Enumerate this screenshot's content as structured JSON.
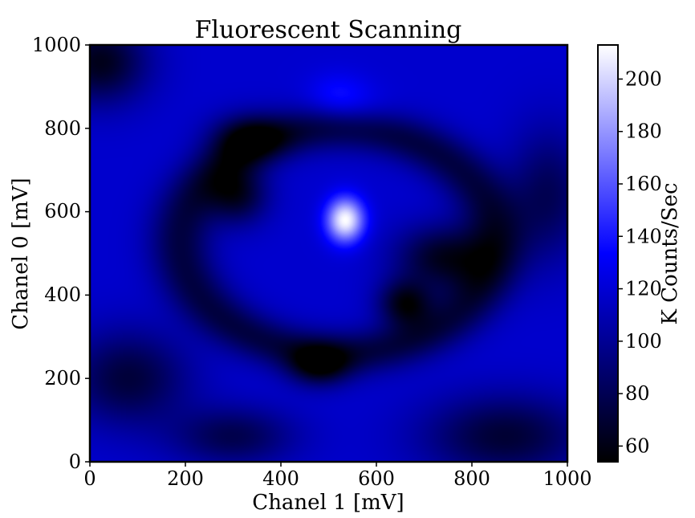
{
  "chart_data": {
    "type": "heatmap",
    "title": "Fluorescent Scanning",
    "xlabel": "Chanel 1 [mV]",
    "ylabel": "Chanel 0 [mV]",
    "xlim": [
      0,
      1000
    ],
    "ylim": [
      0,
      1000
    ],
    "x_ticks": [
      "0",
      "200",
      "400",
      "600",
      "800",
      "1000"
    ],
    "y_ticks": [
      "0",
      "200",
      "400",
      "600",
      "800",
      "1000"
    ],
    "colorbar": {
      "label": "K Counts/Sec",
      "range": [
        54,
        213
      ],
      "ticks": [
        "60",
        "80",
        "100",
        "120",
        "140",
        "160",
        "180",
        "200"
      ],
      "colors": [
        "#000000",
        "#0000ff",
        "#ffffff"
      ]
    },
    "background_level": 118,
    "features": [
      {
        "kind": "bright-spot",
        "x": 535,
        "y": 580,
        "sx": 28,
        "sy": 38,
        "value": 213
      },
      {
        "kind": "bright-spot",
        "x": 520,
        "y": 875,
        "sx": 45,
        "sy": 40,
        "value": 138
      },
      {
        "kind": "bright-spot",
        "x": 580,
        "y": 840,
        "sx": 50,
        "sy": 40,
        "value": 125
      },
      {
        "kind": "dark-ring",
        "cx": 520,
        "cy": 530,
        "rx": 330,
        "ry": 270,
        "width": 38,
        "value": 74
      },
      {
        "kind": "dark-spot",
        "x": 20,
        "y": 960,
        "sx": 70,
        "sy": 70,
        "value": 62
      },
      {
        "kind": "dark-spot",
        "x": 740,
        "y": 490,
        "sx": 70,
        "sy": 55,
        "value": 64
      },
      {
        "kind": "dark-spot",
        "x": 660,
        "y": 380,
        "sx": 40,
        "sy": 40,
        "value": 62
      },
      {
        "kind": "dark-spot",
        "x": 310,
        "y": 640,
        "sx": 45,
        "sy": 50,
        "value": 68
      },
      {
        "kind": "dark-spot",
        "x": 480,
        "y": 230,
        "sx": 45,
        "sy": 35,
        "value": 66
      },
      {
        "kind": "dark-spot",
        "x": 330,
        "y": 780,
        "sx": 55,
        "sy": 40,
        "value": 72
      },
      {
        "kind": "dark-spot",
        "x": 80,
        "y": 200,
        "sx": 90,
        "sy": 80,
        "value": 72
      },
      {
        "kind": "dark-spot",
        "x": 870,
        "y": 60,
        "sx": 120,
        "sy": 70,
        "value": 70
      },
      {
        "kind": "dark-spot",
        "x": 300,
        "y": 60,
        "sx": 90,
        "sy": 50,
        "value": 78
      },
      {
        "kind": "dark-spot",
        "x": 960,
        "y": 640,
        "sx": 60,
        "sy": 110,
        "value": 80
      }
    ]
  }
}
